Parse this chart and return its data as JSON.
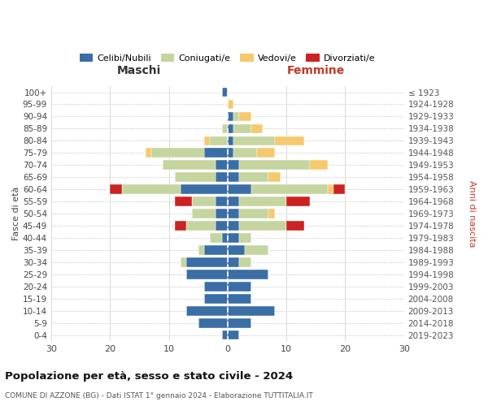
{
  "age_groups": [
    "0-4",
    "5-9",
    "10-14",
    "15-19",
    "20-24",
    "25-29",
    "30-34",
    "35-39",
    "40-44",
    "45-49",
    "50-54",
    "55-59",
    "60-64",
    "65-69",
    "70-74",
    "75-79",
    "80-84",
    "85-89",
    "90-94",
    "95-99",
    "100+"
  ],
  "birth_years": [
    "2019-2023",
    "2014-2018",
    "2009-2013",
    "2004-2008",
    "1999-2003",
    "1994-1998",
    "1989-1993",
    "1984-1988",
    "1979-1983",
    "1974-1978",
    "1969-1973",
    "1964-1968",
    "1959-1963",
    "1954-1958",
    "1949-1953",
    "1944-1948",
    "1939-1943",
    "1934-1938",
    "1929-1933",
    "1924-1928",
    "≤ 1923"
  ],
  "colors": {
    "celibi": "#3a6ea5",
    "coniugati": "#c5d5a0",
    "vedovi": "#f5c96e",
    "divorziati": "#cc2222"
  },
  "maschi": {
    "celibi": [
      1,
      5,
      7,
      4,
      4,
      7,
      7,
      4,
      1,
      2,
      2,
      2,
      8,
      2,
      2,
      4,
      0,
      0,
      0,
      0,
      1
    ],
    "coniugati": [
      0,
      0,
      0,
      0,
      0,
      0,
      1,
      1,
      2,
      5,
      4,
      4,
      10,
      7,
      9,
      9,
      3,
      1,
      0,
      0,
      0
    ],
    "vedovi": [
      0,
      0,
      0,
      0,
      0,
      0,
      0,
      0,
      0,
      0,
      0,
      0,
      0,
      0,
      0,
      1,
      1,
      0,
      0,
      0,
      0
    ],
    "divorziati": [
      0,
      0,
      0,
      0,
      0,
      0,
      0,
      0,
      0,
      2,
      0,
      3,
      2,
      0,
      0,
      0,
      0,
      0,
      0,
      0,
      0
    ]
  },
  "femmine": {
    "celibi": [
      2,
      4,
      8,
      4,
      4,
      7,
      2,
      3,
      2,
      2,
      2,
      2,
      4,
      2,
      2,
      1,
      1,
      1,
      1,
      0,
      0
    ],
    "coniugati": [
      0,
      0,
      0,
      0,
      0,
      0,
      2,
      4,
      2,
      8,
      5,
      8,
      13,
      5,
      12,
      4,
      7,
      3,
      1,
      0,
      0
    ],
    "vedovi": [
      0,
      0,
      0,
      0,
      0,
      0,
      0,
      0,
      0,
      0,
      1,
      0,
      1,
      2,
      3,
      3,
      5,
      2,
      2,
      1,
      0
    ],
    "divorziati": [
      0,
      0,
      0,
      0,
      0,
      0,
      0,
      0,
      0,
      3,
      0,
      4,
      2,
      0,
      0,
      0,
      0,
      0,
      0,
      0,
      0
    ]
  },
  "xlim": 30,
  "title": "Popolazione per età, sesso e stato civile - 2024",
  "subtitle": "COMUNE DI AZZONE (BG) - Dati ISTAT 1° gennaio 2024 - Elaborazione TUTTITALIA.IT",
  "left_label": "Maschi",
  "right_label": "Femmine",
  "ylabel": "Fasce di età",
  "ylabel_right": "Anni di nascita",
  "legend_labels": [
    "Celibi/Nubili",
    "Coniugati/e",
    "Vedovi/e",
    "Divorziati/e"
  ]
}
